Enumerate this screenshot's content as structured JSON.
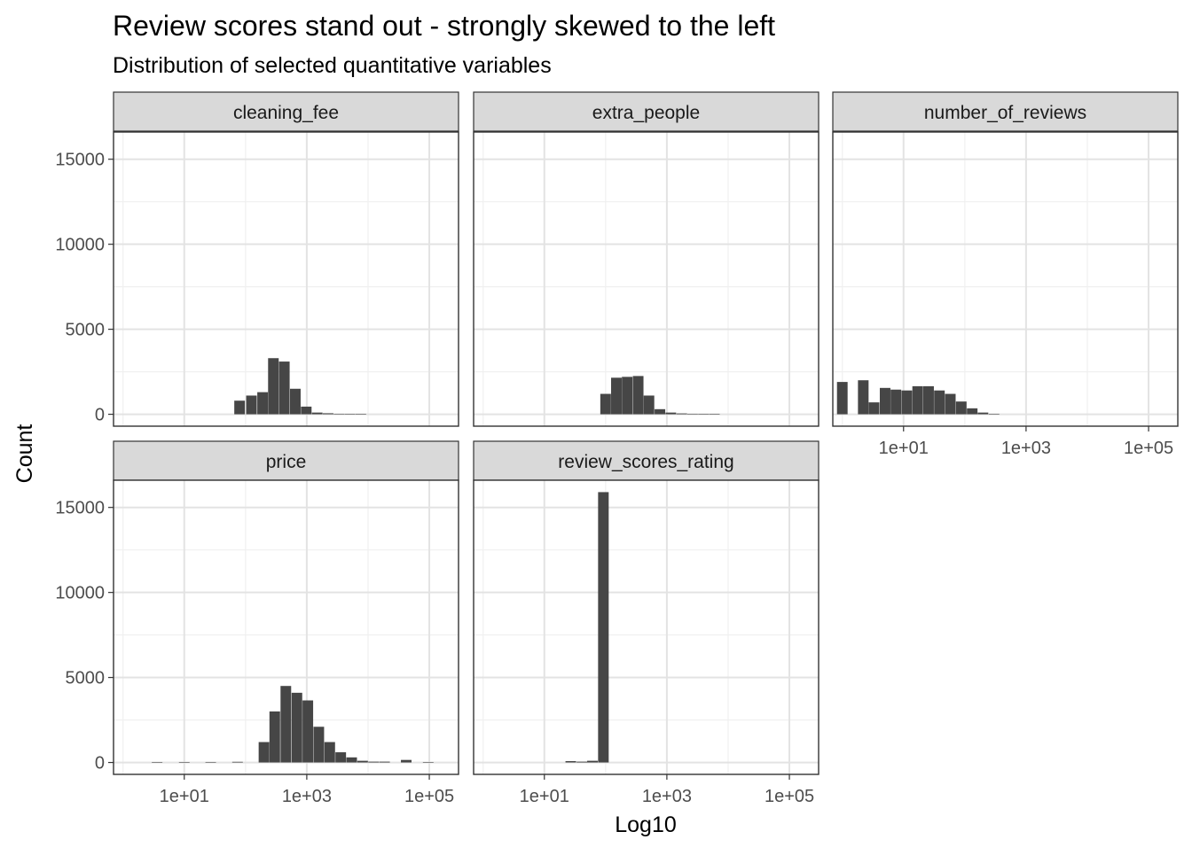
{
  "chart_data": {
    "type": "bar",
    "title": "Review scores stand out - strongly skewed to the left",
    "subtitle": "Distribution of selected quantitative variables",
    "xlabel": "Log10",
    "ylabel": "Count",
    "x_scale": "log10",
    "xlim": [
      0.7,
      300000
    ],
    "ylim": [
      -700,
      16600
    ],
    "x_ticks": [
      "1e+01",
      "1e+03",
      "1e+05"
    ],
    "y_ticks": [
      "0",
      "5000",
      "10000",
      "15000"
    ],
    "grid": true,
    "bar_color": "#464646",
    "facets": [
      {
        "name": "cleaning_fee",
        "bins": [
          {
            "x": 80,
            "count": 800
          },
          {
            "x": 125,
            "count": 1100
          },
          {
            "x": 190,
            "count": 1300
          },
          {
            "x": 285,
            "count": 3300
          },
          {
            "x": 430,
            "count": 3100
          },
          {
            "x": 650,
            "count": 1500
          },
          {
            "x": 980,
            "count": 450
          },
          {
            "x": 1480,
            "count": 100
          },
          {
            "x": 2230,
            "count": 60
          },
          {
            "x": 3360,
            "count": 30
          },
          {
            "x": 5060,
            "count": 20
          },
          {
            "x": 7630,
            "count": 10
          }
        ]
      },
      {
        "name": "extra_people",
        "bins": [
          {
            "x": 100,
            "count": 1200
          },
          {
            "x": 150,
            "count": 2150
          },
          {
            "x": 225,
            "count": 2200
          },
          {
            "x": 340,
            "count": 2250
          },
          {
            "x": 510,
            "count": 1100
          },
          {
            "x": 770,
            "count": 300
          },
          {
            "x": 1160,
            "count": 100
          },
          {
            "x": 1750,
            "count": 50
          },
          {
            "x": 2630,
            "count": 30
          },
          {
            "x": 3960,
            "count": 20
          },
          {
            "x": 5970,
            "count": 10
          }
        ]
      },
      {
        "name": "number_of_reviews",
        "bins": [
          {
            "x": 1,
            "count": 1900
          },
          {
            "x": 2.2,
            "count": 2000
          },
          {
            "x": 3.3,
            "count": 700
          },
          {
            "x": 5,
            "count": 1550
          },
          {
            "x": 7.5,
            "count": 1450
          },
          {
            "x": 11.3,
            "count": 1400
          },
          {
            "x": 17,
            "count": 1650
          },
          {
            "x": 25.6,
            "count": 1650
          },
          {
            "x": 38.5,
            "count": 1400
          },
          {
            "x": 58,
            "count": 1200
          },
          {
            "x": 87.5,
            "count": 750
          },
          {
            "x": 132,
            "count": 350
          },
          {
            "x": 198,
            "count": 100
          },
          {
            "x": 300,
            "count": 30
          }
        ]
      },
      {
        "name": "price",
        "bins": [
          {
            "x": 3.6,
            "count": 20
          },
          {
            "x": 10,
            "count": 20
          },
          {
            "x": 27,
            "count": 30
          },
          {
            "x": 74,
            "count": 40
          },
          {
            "x": 200,
            "count": 1200
          },
          {
            "x": 300,
            "count": 3000
          },
          {
            "x": 455,
            "count": 4500
          },
          {
            "x": 690,
            "count": 4100
          },
          {
            "x": 1040,
            "count": 3650
          },
          {
            "x": 1570,
            "count": 2100
          },
          {
            "x": 2370,
            "count": 1200
          },
          {
            "x": 3580,
            "count": 600
          },
          {
            "x": 5400,
            "count": 300
          },
          {
            "x": 8150,
            "count": 100
          },
          {
            "x": 12300,
            "count": 50
          },
          {
            "x": 18600,
            "count": 50
          },
          {
            "x": 42000,
            "count": 150
          },
          {
            "x": 96000,
            "count": 10
          }
        ]
      },
      {
        "name": "review_scores_rating",
        "bins": [
          {
            "x": 27,
            "count": 80
          },
          {
            "x": 41,
            "count": 50
          },
          {
            "x": 61,
            "count": 100
          },
          {
            "x": 92,
            "count": 15900
          }
        ]
      }
    ]
  }
}
